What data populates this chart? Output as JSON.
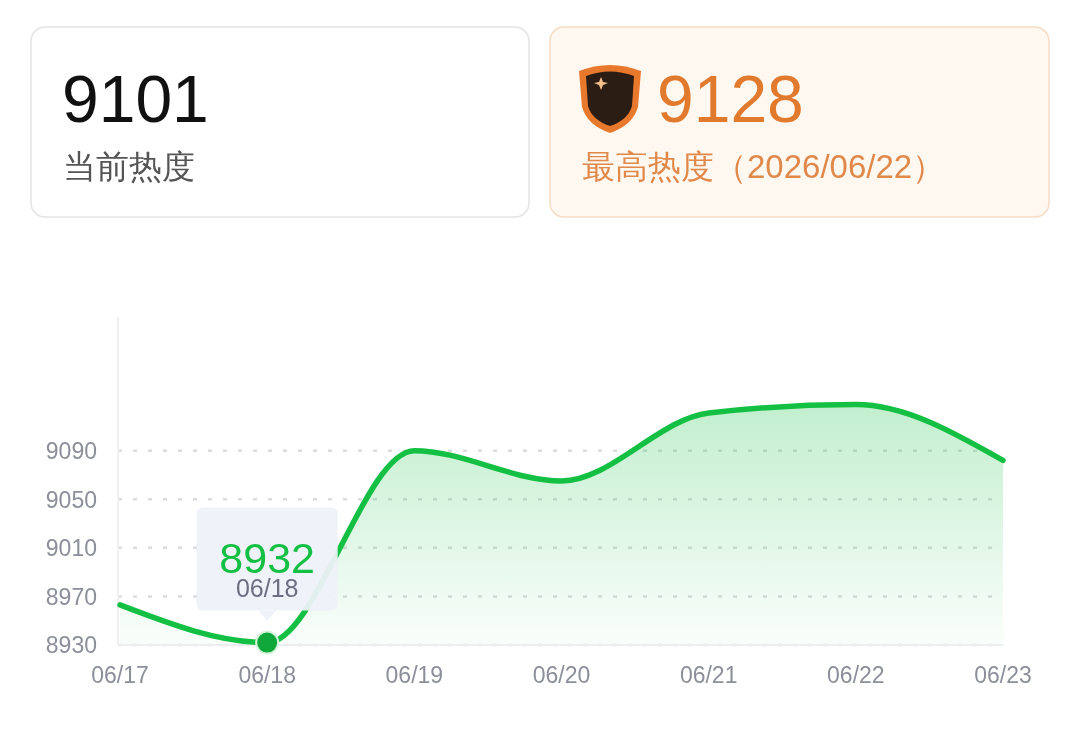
{
  "chart_data": [
    {
      "type": "other",
      "title": "9101",
      "subtitle": "当前热度"
    },
    {
      "type": "other",
      "title": "9128",
      "subtitle": "最高热度（2026/06/22）"
    },
    {
      "type": "area",
      "categories": [
        "06/17",
        "06/18",
        "06/19",
        "06/20",
        "06/21",
        "06/22",
        "06/23"
      ],
      "values": [
        8963,
        8932,
        9090,
        9065,
        9121,
        9128,
        9082
      ],
      "color": "#14c043",
      "ylim": [
        8930,
        9200
      ],
      "yticks": [
        8930,
        8970,
        9010,
        9050,
        9090
      ],
      "grid": "y",
      "annotations": [
        {
          "text": "8932",
          "x": "06/18",
          "y": 8932
        },
        {
          "text": "06/18",
          "x": "06/18",
          "y": 8932
        }
      ]
    }
  ]
}
